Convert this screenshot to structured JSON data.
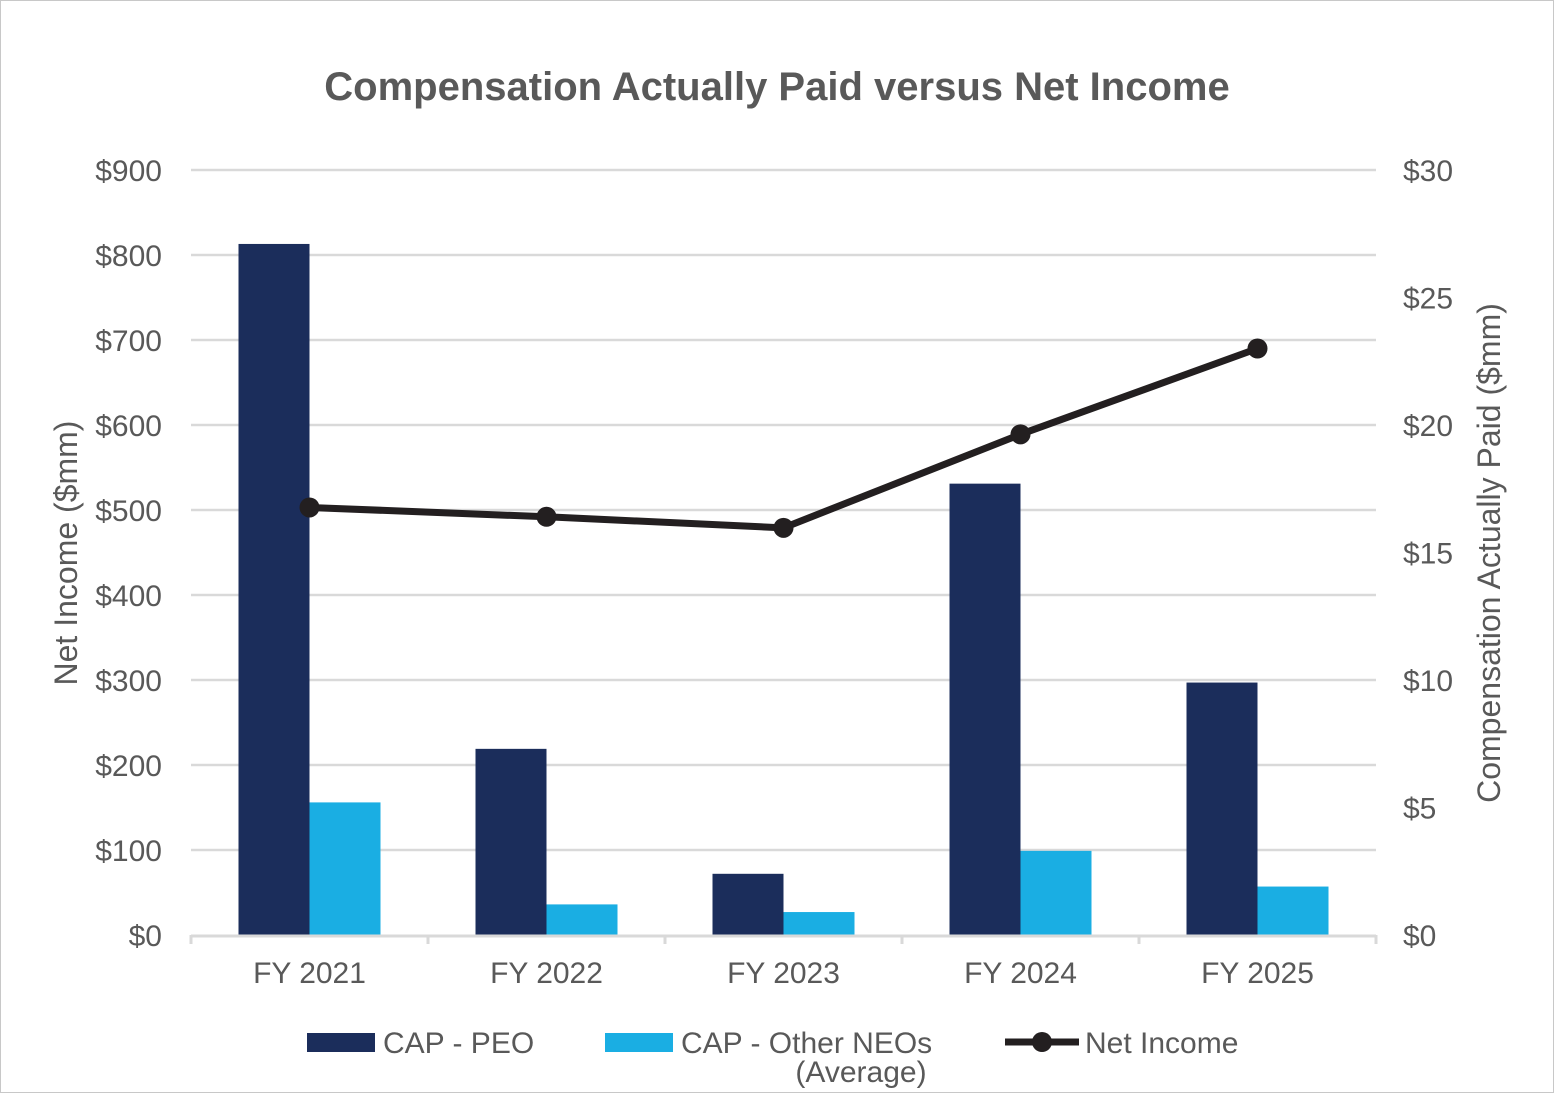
{
  "chart_data": {
    "type": "bar",
    "title": "Compensation Actually Paid versus Net Income",
    "categories": [
      "FY 2021",
      "FY 2022",
      "FY 2023",
      "FY 2024",
      "FY 2025"
    ],
    "y_left": {
      "label": "Net Income ($mm)",
      "range": [
        0,
        900
      ],
      "ticks": [
        0,
        100,
        200,
        300,
        400,
        500,
        600,
        700,
        800,
        900
      ],
      "tick_labels": [
        "$0",
        "$100",
        "$200",
        "$300",
        "$400",
        "$500",
        "$600",
        "$700",
        "$800",
        "$900"
      ]
    },
    "y_right": {
      "label": "Compensation Actually Paid ($mm)",
      "range": [
        0,
        30
      ],
      "ticks": [
        0,
        5,
        10,
        15,
        20,
        25,
        30
      ],
      "tick_labels": [
        "$0",
        "$5",
        "$10",
        "$15",
        "$20",
        "$25",
        "$30"
      ]
    },
    "series": [
      {
        "name": "CAP - PEO",
        "type": "bar",
        "axis": "right",
        "color": "#1b2d5b",
        "values": [
          27.1,
          7.3,
          2.4,
          17.7,
          9.9
        ]
      },
      {
        "name": "CAP - Other NEOs (Average)",
        "legend_lines": [
          "CAP - Other NEOs",
          "(Average)"
        ],
        "type": "bar",
        "axis": "right",
        "color": "#1aaee3",
        "values": [
          5.2,
          1.2,
          0.9,
          3.3,
          1.9
        ]
      },
      {
        "name": "Net Income",
        "type": "line",
        "axis": "left",
        "color": "#231f20",
        "values": [
          503,
          492,
          479,
          589,
          690
        ]
      }
    ],
    "grid": true,
    "legend_position": "bottom"
  }
}
